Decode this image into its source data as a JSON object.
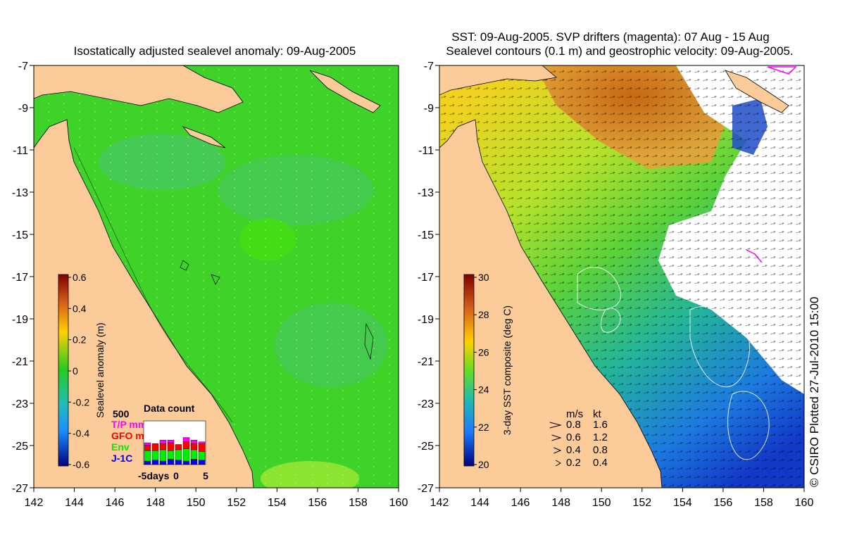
{
  "left_panel": {
    "title": "Isostatically adjusted sealevel anomaly: 09-Aug-2005",
    "colorbar": {
      "label": "Sealevel anomaly (m)",
      "ticks": [
        "0.6",
        "0.4",
        "0.2",
        "0",
        "-0.2",
        "-0.4",
        "-0.6"
      ]
    },
    "data_count": {
      "title": "Data count",
      "max_label": "500",
      "legend": [
        {
          "label": "T/P mm",
          "color": "#ff00ff"
        },
        {
          "label": "GFO mm",
          "color": "#ff0000"
        },
        {
          "label": "Env",
          "color": "#00ee00"
        },
        {
          "label": "J-1C",
          "color": "#0000ff"
        }
      ],
      "x_labels": [
        "-5days",
        "0",
        "5"
      ],
      "bars": [
        {
          "J-1C": 40,
          "Env": 120,
          "GFO mm": 60,
          "T/P mm": 30
        },
        {
          "J-1C": 50,
          "Env": 110,
          "GFO mm": 80,
          "T/P mm": 0
        },
        {
          "J-1C": 40,
          "Env": 130,
          "GFO mm": 70,
          "T/P mm": 40
        },
        {
          "J-1C": 60,
          "Env": 100,
          "GFO mm": 90,
          "T/P mm": 30
        },
        {
          "J-1C": 50,
          "Env": 120,
          "GFO mm": 60,
          "T/P mm": 0
        },
        {
          "J-1C": 40,
          "Env": 140,
          "GFO mm": 80,
          "T/P mm": 50
        },
        {
          "J-1C": 60,
          "Env": 110,
          "GFO mm": 70,
          "T/P mm": 40
        },
        {
          "J-1C": 50,
          "Env": 100,
          "GFO mm": 90,
          "T/P mm": 20
        }
      ]
    }
  },
  "right_panel": {
    "title_line1": "SST: 09-Aug-2005. SVP drifters (magenta): 07 Aug - 15 Aug",
    "title_line2": "Sealevel contours (0.1 m) and geostrophic velocity: 09-Aug-2005.",
    "colorbar": {
      "label": "3-day SST composite (deg C)",
      "ticks": [
        "30",
        "28",
        "26",
        "24",
        "22",
        "20"
      ]
    },
    "velocity_legend": {
      "header_ms": "m/s",
      "header_kt": "kt",
      "rows": [
        {
          "ms": "0.8",
          "kt": "1.6"
        },
        {
          "ms": "0.6",
          "kt": "1.2"
        },
        {
          "ms": "0.4",
          "kt": "0.8"
        },
        {
          "ms": "0.2",
          "kt": "0.4"
        }
      ]
    }
  },
  "axes": {
    "lat_ticks": [
      "-7",
      "-9",
      "-11",
      "-13",
      "-15",
      "-17",
      "-19",
      "-21",
      "-23",
      "-25",
      "-27"
    ],
    "lon_ticks": [
      "142",
      "144",
      "146",
      "148",
      "150",
      "152",
      "154",
      "156",
      "158",
      "160"
    ]
  },
  "credit": "© CSIRO Plotted 27-Jul-2010 15:00",
  "colors": {
    "land": "#fccb9a",
    "ocean_green": "#3fd32a",
    "sst_warm": "#d9701c",
    "sst_mid": "#7fd83a",
    "sst_cool": "#1e6cd8",
    "cloud": "#ffffff"
  }
}
